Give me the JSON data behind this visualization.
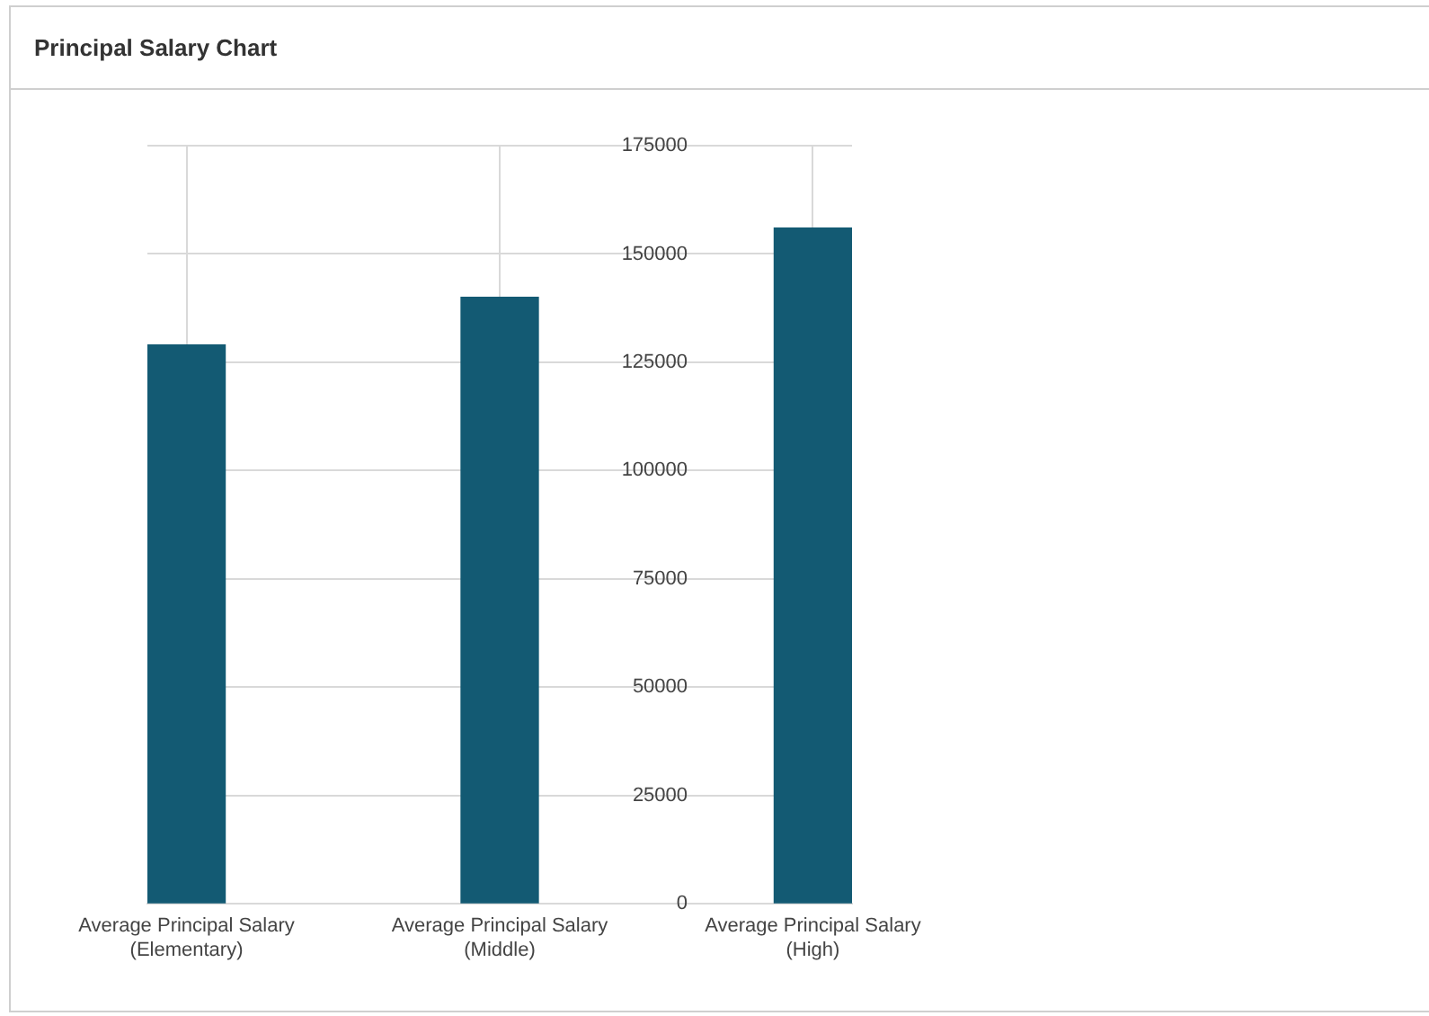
{
  "chart_data": {
    "type": "bar",
    "title": "Principal Salary Chart",
    "categories": [
      "Average Principal Salary (Elementary)",
      "Average Principal Salary (Middle)",
      "Average Principal Salary (High)"
    ],
    "values": [
      129000,
      140000,
      156000
    ],
    "color": "#135a73",
    "ylim": [
      0,
      175000
    ],
    "yticks": [
      0,
      25000,
      50000,
      75000,
      100000,
      125000,
      150000,
      175000
    ],
    "grid": true,
    "legend": false
  }
}
